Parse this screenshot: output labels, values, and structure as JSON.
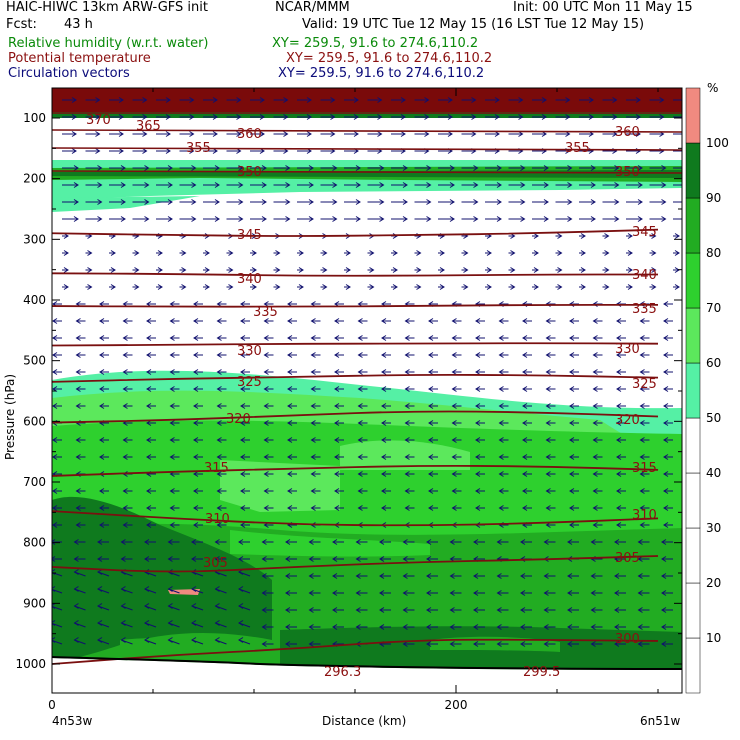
{
  "header": {
    "model": "HAIC-HIWC 13km ARW-GFS init",
    "org": "NCAR/MMM",
    "init": "Init: 00 UTC Mon 11 May 15",
    "fcst_label": "Fcst:",
    "fcst_value": "43 h",
    "valid": "Valid: 19 UTC Tue 12 May 15 (16 LST Tue 12 May 15)",
    "field1": "Relative humidity (w.r.t. water)",
    "field2": "Potential temperature",
    "field3": "Circulation vectors",
    "xy1": "XY= 259.5, 91.6 to 274.6,110.2",
    "xy2": "XY= 259.5, 91.6 to 274.6,110.2",
    "xy3": "XY= 259.5, 91.6 to 274.6,110.2"
  },
  "colors": {
    "rh_fill": [
      "#ffffff",
      "#ffffff",
      "#ffffff",
      "#ffffff",
      "#ffffff",
      "#55f0a5",
      "#5ce85c",
      "#2ed02e",
      "#22ac22",
      "#0f7a1e",
      "#f08a80"
    ],
    "theta_line": "#7a1010",
    "vectors": "#10106e",
    "terrain": "#000000"
  },
  "chart_data": {
    "type": "cross-section",
    "ylabel": "Pressure (hPa)",
    "xlabel": "Distance (km)",
    "x_start_label": "4n53w",
    "x_end_label": "6n51w",
    "xlim": [
      0,
      300
    ],
    "ylim": [
      1050,
      60
    ],
    "x_ticks": [
      "0",
      "200"
    ],
    "x_tick_values": [
      0,
      200
    ],
    "y_ticks": [
      "100",
      "200",
      "300",
      "400",
      "500",
      "600",
      "700",
      "800",
      "900",
      "1000"
    ],
    "y_tick_values": [
      100,
      200,
      300,
      400,
      500,
      600,
      700,
      800,
      900,
      1000
    ],
    "colorbar": {
      "unit": "%",
      "levels": [
        "10",
        "20",
        "30",
        "40",
        "50",
        "60",
        "70",
        "80",
        "90",
        "100"
      ],
      "level_values": [
        10,
        20,
        30,
        40,
        50,
        60,
        70,
        80,
        90,
        100
      ]
    },
    "theta_labels": [
      "370",
      "365",
      "360",
      "355",
      "350",
      "345",
      "340",
      "335",
      "330",
      "325",
      "320",
      "315",
      "310",
      "305",
      "300",
      "296.3",
      "299.5"
    ],
    "theta_contours": [
      {
        "label": "345",
        "p": [
          290,
          293,
          295,
          293,
          290,
          284
        ]
      },
      {
        "label": "340",
        "p": [
          356,
          357,
          360,
          360,
          358,
          358
        ]
      },
      {
        "label": "335",
        "p": [
          410,
          411,
          411,
          410,
          408,
          408
        ]
      },
      {
        "label": "330",
        "p": [
          475,
          474,
          472,
          472,
          471,
          472
        ]
      },
      {
        "label": "325",
        "p": [
          535,
          530,
          527,
          523,
          524,
          528
        ]
      },
      {
        "label": "320",
        "p": [
          602,
          598,
          590,
          583,
          585,
          592
        ]
      },
      {
        "label": "315",
        "p": [
          690,
          683,
          678,
          673,
          674,
          680
        ]
      },
      {
        "label": "310",
        "p": [
          748,
          760,
          770,
          772,
          768,
          760
        ]
      },
      {
        "label": "305",
        "p": [
          840,
          850,
          840,
          832,
          828,
          822
        ]
      },
      {
        "label": "300",
        "p": [
          1000,
          985,
          975,
          960,
          960,
          962
        ]
      }
    ],
    "contour_x": [
      0,
      60,
      120,
      180,
      240,
      300
    ]
  }
}
